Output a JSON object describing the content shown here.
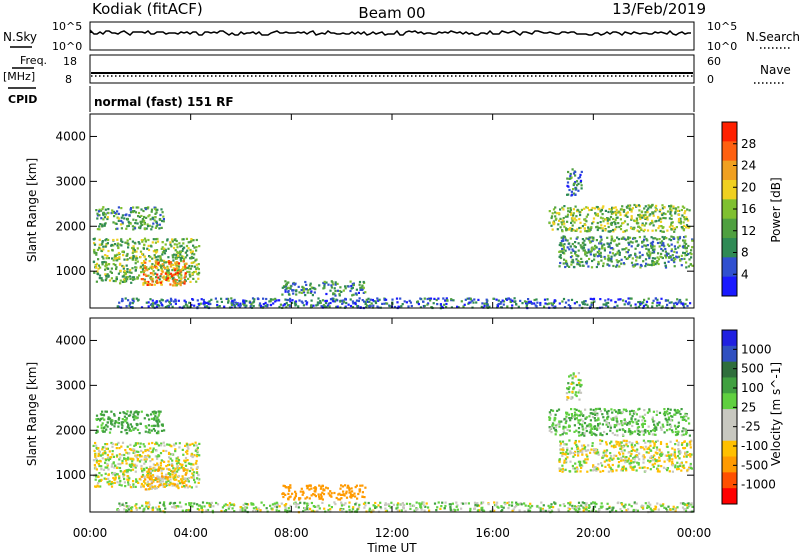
{
  "header": {
    "radar": "Kodiak (fitACF)",
    "beam": "Beam 00",
    "date": "13/Feb/2019"
  },
  "strip": {
    "nsky_label": "N.Sky",
    "nsky_ticks": [
      "10^5",
      "10^0"
    ],
    "nsearch_label": "N.Search",
    "nsearch_ticks": [
      "10^5",
      "10^0"
    ],
    "freq_label": "Freq.",
    "freq_unit": "[MHz]",
    "freq_ticks": [
      "18",
      "8"
    ],
    "nave_label": "Nave",
    "nave_ticks": [
      "60",
      "0"
    ],
    "cpid_label": "CPID",
    "cpid_text": "normal (fast) 151 RF"
  },
  "colors": {
    "power": [
      "#1a1aff",
      "#3050d0",
      "#2f8a55",
      "#4fa040",
      "#7fc030",
      "#f0d020",
      "#f0a020",
      "#ff6010",
      "#ff2000"
    ],
    "velocity": [
      "#ff0000",
      "#ff5000",
      "#ff9a00",
      "#ffc000",
      "#c8c8c0",
      "#c8c8c0",
      "#60d040",
      "#40a040",
      "#2f6e3c",
      "#3050c0",
      "#2020e0"
    ]
  },
  "chart_data": [
    {
      "type": "heatmap",
      "panel": "power",
      "xlabel": "",
      "ylabel": "Slant Range [km]",
      "yticks": [
        "1000",
        "2000",
        "3000",
        "4000"
      ],
      "ylim": [
        180,
        4500
      ],
      "xlim_hours": [
        0,
        24
      ],
      "colorbar_label": "Power [dB]",
      "colorbar_ticks": [
        "4",
        "8",
        "12",
        "16",
        "20",
        "24",
        "28"
      ],
      "colorbar_range": [
        0,
        30
      ],
      "regions": [
        {
          "t": [
            0.1,
            4.3
          ],
          "r": [
            750,
            1750
          ],
          "level": 13
        },
        {
          "t": [
            0.2,
            2.9
          ],
          "r": [
            1950,
            2450
          ],
          "level": 11
        },
        {
          "t": [
            2.0,
            3.8
          ],
          "r": [
            700,
            1250
          ],
          "level": 22
        },
        {
          "t": [
            18.2,
            23.8
          ],
          "r": [
            1900,
            2500
          ],
          "level": 14
        },
        {
          "t": [
            18.6,
            23.9
          ],
          "r": [
            1100,
            1800
          ],
          "level": 10
        },
        {
          "t": [
            7.6,
            10.9
          ],
          "r": [
            480,
            800
          ],
          "level": 9
        },
        {
          "t": [
            18.9,
            19.5
          ],
          "r": [
            2700,
            3300
          ],
          "level": 8
        },
        {
          "t": [
            1.0,
            23.9
          ],
          "r": [
            200,
            420
          ],
          "level": 6
        }
      ]
    },
    {
      "type": "heatmap",
      "panel": "velocity",
      "xlabel": "Time UT",
      "ylabel": "Slant Range [km]",
      "yticks": [
        "1000",
        "2000",
        "3000",
        "4000"
      ],
      "ylim": [
        180,
        4500
      ],
      "xlim_hours": [
        0,
        24
      ],
      "xticks": [
        "00:00",
        "04:00",
        "08:00",
        "12:00",
        "16:00",
        "20:00",
        "00:00"
      ],
      "colorbar_label": "Velocity [m s^-1]",
      "colorbar_ticks": [
        "-1000",
        "-500",
        "-100",
        "-25",
        "25",
        "100",
        "500",
        "1000"
      ],
      "regions": [
        {
          "t": [
            0.1,
            4.3
          ],
          "r": [
            750,
            1750
          ],
          "level": 0
        },
        {
          "t": [
            0.2,
            2.9
          ],
          "r": [
            1950,
            2450
          ],
          "level": 150
        },
        {
          "t": [
            2.0,
            3.8
          ],
          "r": [
            700,
            1250
          ],
          "level": -60
        },
        {
          "t": [
            18.2,
            23.8
          ],
          "r": [
            1900,
            2500
          ],
          "level": 80
        },
        {
          "t": [
            18.6,
            23.9
          ],
          "r": [
            1100,
            1800
          ],
          "level": 0
        },
        {
          "t": [
            7.6,
            10.9
          ],
          "r": [
            480,
            800
          ],
          "level": -400
        },
        {
          "t": [
            18.9,
            19.5
          ],
          "r": [
            2700,
            3300
          ],
          "level": 30
        },
        {
          "t": [
            1.0,
            23.9
          ],
          "r": [
            200,
            420
          ],
          "level": 40
        }
      ]
    }
  ]
}
